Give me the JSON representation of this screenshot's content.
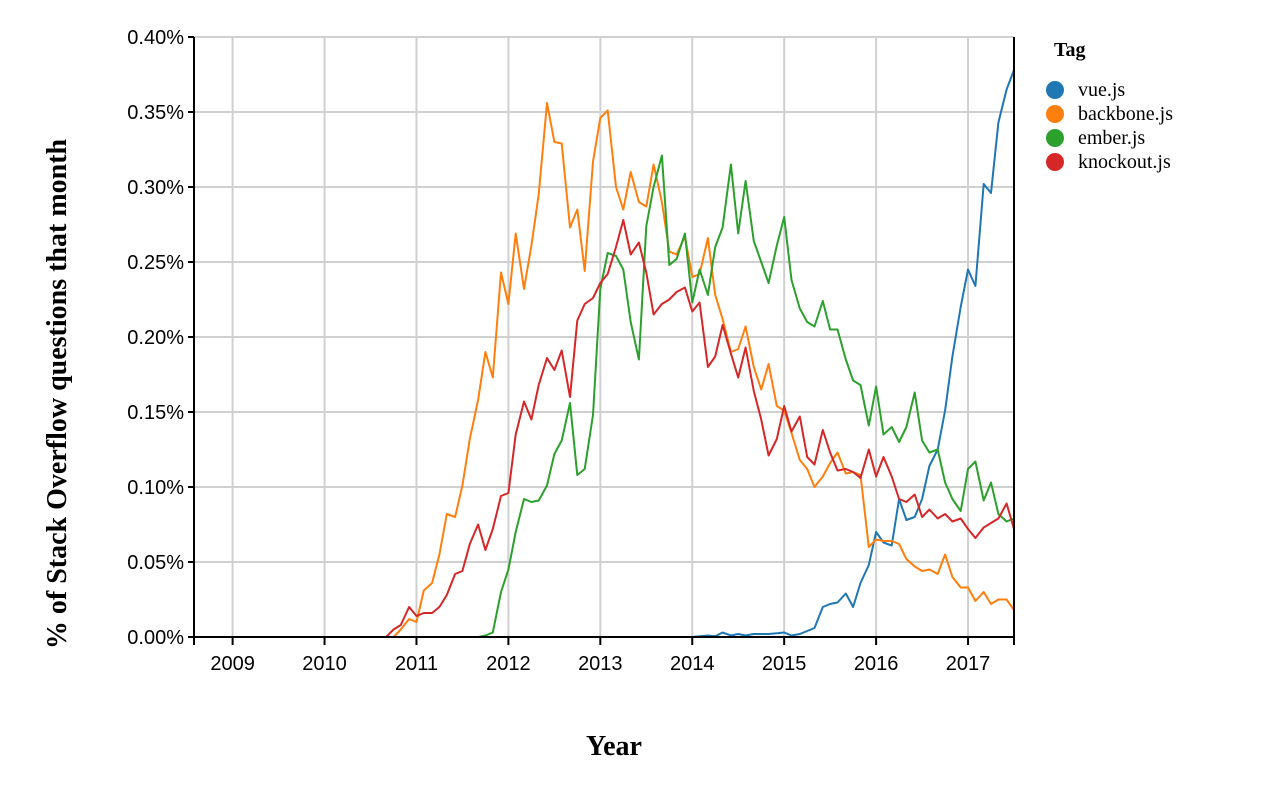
{
  "chart_data": {
    "type": "line",
    "title": "",
    "xlabel": "Year",
    "ylabel": "% of Stack Overflow questions that month",
    "xlim": [
      2008.58,
      2017.5
    ],
    "ylim": [
      0,
      0.4
    ],
    "x_ticks": [
      {
        "value": 2009,
        "label": "2009"
      },
      {
        "value": 2010,
        "label": "2010"
      },
      {
        "value": 2011,
        "label": "2011"
      },
      {
        "value": 2012,
        "label": "2012"
      },
      {
        "value": 2013,
        "label": "2013"
      },
      {
        "value": 2014,
        "label": "2014"
      },
      {
        "value": 2015,
        "label": "2015"
      },
      {
        "value": 2016,
        "label": "2016"
      },
      {
        "value": 2017,
        "label": "2017"
      }
    ],
    "y_ticks": [
      {
        "value": 0.0,
        "label": "0.00%"
      },
      {
        "value": 0.05,
        "label": "0.05%"
      },
      {
        "value": 0.1,
        "label": "0.10%"
      },
      {
        "value": 0.15,
        "label": "0.15%"
      },
      {
        "value": 0.2,
        "label": "0.20%"
      },
      {
        "value": 0.25,
        "label": "0.25%"
      },
      {
        "value": 0.3,
        "label": "0.30%"
      },
      {
        "value": 0.35,
        "label": "0.35%"
      },
      {
        "value": 0.4,
        "label": "0.40%"
      }
    ],
    "grid": true,
    "legend": {
      "title": "Tag",
      "position": "right"
    },
    "series": [
      {
        "name": "vue.js",
        "color": "#1f77b4",
        "points": [
          [
            2008.58,
            0.0
          ],
          [
            2014.0,
            0.0
          ],
          [
            2014.17,
            0.001
          ],
          [
            2014.25,
            0.0005
          ],
          [
            2014.33,
            0.003
          ],
          [
            2014.42,
            0.001
          ],
          [
            2014.5,
            0.002
          ],
          [
            2014.58,
            0.001
          ],
          [
            2014.67,
            0.002
          ],
          [
            2014.75,
            0.002
          ],
          [
            2014.83,
            0.002
          ],
          [
            2014.92,
            0.0025
          ],
          [
            2015.0,
            0.003
          ],
          [
            2015.08,
            0.001
          ],
          [
            2015.17,
            0.002
          ],
          [
            2015.25,
            0.004
          ],
          [
            2015.33,
            0.006
          ],
          [
            2015.42,
            0.02
          ],
          [
            2015.5,
            0.022
          ],
          [
            2015.58,
            0.023
          ],
          [
            2015.67,
            0.029
          ],
          [
            2015.75,
            0.02
          ],
          [
            2015.83,
            0.036
          ],
          [
            2015.92,
            0.048
          ],
          [
            2016.0,
            0.07
          ],
          [
            2016.08,
            0.063
          ],
          [
            2016.17,
            0.061
          ],
          [
            2016.25,
            0.092
          ],
          [
            2016.33,
            0.078
          ],
          [
            2016.42,
            0.08
          ],
          [
            2016.5,
            0.092
          ],
          [
            2016.58,
            0.114
          ],
          [
            2016.67,
            0.125
          ],
          [
            2016.75,
            0.151
          ],
          [
            2016.83,
            0.187
          ],
          [
            2016.92,
            0.22
          ],
          [
            2017.0,
            0.245
          ],
          [
            2017.08,
            0.234
          ],
          [
            2017.17,
            0.302
          ],
          [
            2017.25,
            0.296
          ],
          [
            2017.33,
            0.343
          ],
          [
            2017.42,
            0.365
          ],
          [
            2017.5,
            0.378
          ]
        ]
      },
      {
        "name": "backbone.js",
        "color": "#ff7f0e",
        "points": [
          [
            2008.58,
            0.0
          ],
          [
            2010.75,
            0.0
          ],
          [
            2010.83,
            0.005
          ],
          [
            2010.92,
            0.012
          ],
          [
            2011.0,
            0.01
          ],
          [
            2011.08,
            0.031
          ],
          [
            2011.17,
            0.036
          ],
          [
            2011.25,
            0.055
          ],
          [
            2011.33,
            0.082
          ],
          [
            2011.42,
            0.08
          ],
          [
            2011.5,
            0.101
          ],
          [
            2011.58,
            0.132
          ],
          [
            2011.67,
            0.158
          ],
          [
            2011.75,
            0.19
          ],
          [
            2011.83,
            0.173
          ],
          [
            2011.92,
            0.243
          ],
          [
            2012.0,
            0.222
          ],
          [
            2012.08,
            0.269
          ],
          [
            2012.17,
            0.232
          ],
          [
            2012.25,
            0.261
          ],
          [
            2012.33,
            0.295
          ],
          [
            2012.42,
            0.356
          ],
          [
            2012.5,
            0.33
          ],
          [
            2012.58,
            0.329
          ],
          [
            2012.67,
            0.273
          ],
          [
            2012.75,
            0.285
          ],
          [
            2012.83,
            0.244
          ],
          [
            2012.92,
            0.317
          ],
          [
            2013.0,
            0.346
          ],
          [
            2013.08,
            0.351
          ],
          [
            2013.17,
            0.3
          ],
          [
            2013.25,
            0.285
          ],
          [
            2013.33,
            0.31
          ],
          [
            2013.42,
            0.29
          ],
          [
            2013.5,
            0.287
          ],
          [
            2013.58,
            0.315
          ],
          [
            2013.67,
            0.29
          ],
          [
            2013.75,
            0.257
          ],
          [
            2013.83,
            0.255
          ],
          [
            2013.92,
            0.267
          ],
          [
            2014.0,
            0.24
          ],
          [
            2014.08,
            0.242
          ],
          [
            2014.17,
            0.266
          ],
          [
            2014.25,
            0.228
          ],
          [
            2014.33,
            0.212
          ],
          [
            2014.42,
            0.19
          ],
          [
            2014.5,
            0.192
          ],
          [
            2014.58,
            0.207
          ],
          [
            2014.67,
            0.18
          ],
          [
            2014.75,
            0.165
          ],
          [
            2014.83,
            0.182
          ],
          [
            2014.92,
            0.154
          ],
          [
            2015.0,
            0.151
          ],
          [
            2015.08,
            0.136
          ],
          [
            2015.17,
            0.118
          ],
          [
            2015.25,
            0.112
          ],
          [
            2015.33,
            0.1
          ],
          [
            2015.42,
            0.107
          ],
          [
            2015.5,
            0.116
          ],
          [
            2015.58,
            0.123
          ],
          [
            2015.67,
            0.109
          ],
          [
            2015.75,
            0.11
          ],
          [
            2015.83,
            0.108
          ],
          [
            2015.92,
            0.06
          ],
          [
            2016.0,
            0.065
          ],
          [
            2016.08,
            0.064
          ],
          [
            2016.17,
            0.064
          ],
          [
            2016.25,
            0.062
          ],
          [
            2016.33,
            0.052
          ],
          [
            2016.42,
            0.047
          ],
          [
            2016.5,
            0.044
          ],
          [
            2016.58,
            0.045
          ],
          [
            2016.67,
            0.042
          ],
          [
            2016.75,
            0.055
          ],
          [
            2016.83,
            0.04
          ],
          [
            2016.92,
            0.033
          ],
          [
            2017.0,
            0.033
          ],
          [
            2017.08,
            0.024
          ],
          [
            2017.17,
            0.03
          ],
          [
            2017.25,
            0.022
          ],
          [
            2017.33,
            0.025
          ],
          [
            2017.42,
            0.025
          ],
          [
            2017.5,
            0.018
          ]
        ]
      },
      {
        "name": "ember.js",
        "color": "#2ca02c",
        "points": [
          [
            2008.58,
            0.0
          ],
          [
            2011.67,
            0.0
          ],
          [
            2011.75,
            0.001
          ],
          [
            2011.83,
            0.003
          ],
          [
            2011.92,
            0.03
          ],
          [
            2012.0,
            0.045
          ],
          [
            2012.08,
            0.07
          ],
          [
            2012.17,
            0.092
          ],
          [
            2012.25,
            0.09
          ],
          [
            2012.33,
            0.091
          ],
          [
            2012.42,
            0.101
          ],
          [
            2012.5,
            0.122
          ],
          [
            2012.58,
            0.131
          ],
          [
            2012.67,
            0.156
          ],
          [
            2012.75,
            0.108
          ],
          [
            2012.83,
            0.112
          ],
          [
            2012.92,
            0.148
          ],
          [
            2013.0,
            0.232
          ],
          [
            2013.08,
            0.256
          ],
          [
            2013.17,
            0.254
          ],
          [
            2013.25,
            0.245
          ],
          [
            2013.33,
            0.21
          ],
          [
            2013.42,
            0.185
          ],
          [
            2013.5,
            0.274
          ],
          [
            2013.58,
            0.3
          ],
          [
            2013.67,
            0.321
          ],
          [
            2013.75,
            0.248
          ],
          [
            2013.83,
            0.252
          ],
          [
            2013.92,
            0.269
          ],
          [
            2014.0,
            0.223
          ],
          [
            2014.08,
            0.245
          ],
          [
            2014.17,
            0.228
          ],
          [
            2014.25,
            0.26
          ],
          [
            2014.33,
            0.273
          ],
          [
            2014.42,
            0.315
          ],
          [
            2014.5,
            0.269
          ],
          [
            2014.58,
            0.304
          ],
          [
            2014.67,
            0.264
          ],
          [
            2014.75,
            0.25
          ],
          [
            2014.83,
            0.236
          ],
          [
            2014.92,
            0.261
          ],
          [
            2015.0,
            0.28
          ],
          [
            2015.08,
            0.238
          ],
          [
            2015.17,
            0.219
          ],
          [
            2015.25,
            0.21
          ],
          [
            2015.33,
            0.207
          ],
          [
            2015.42,
            0.224
          ],
          [
            2015.5,
            0.205
          ],
          [
            2015.58,
            0.205
          ],
          [
            2015.67,
            0.185
          ],
          [
            2015.75,
            0.171
          ],
          [
            2015.83,
            0.168
          ],
          [
            2015.92,
            0.141
          ],
          [
            2016.0,
            0.167
          ],
          [
            2016.08,
            0.135
          ],
          [
            2016.17,
            0.14
          ],
          [
            2016.25,
            0.13
          ],
          [
            2016.33,
            0.14
          ],
          [
            2016.42,
            0.163
          ],
          [
            2016.5,
            0.131
          ],
          [
            2016.58,
            0.123
          ],
          [
            2016.67,
            0.125
          ],
          [
            2016.75,
            0.103
          ],
          [
            2016.83,
            0.092
          ],
          [
            2016.92,
            0.084
          ],
          [
            2017.0,
            0.112
          ],
          [
            2017.08,
            0.117
          ],
          [
            2017.17,
            0.091
          ],
          [
            2017.25,
            0.103
          ],
          [
            2017.33,
            0.082
          ],
          [
            2017.42,
            0.077
          ],
          [
            2017.5,
            0.079
          ]
        ]
      },
      {
        "name": "knockout.js",
        "color": "#d62728",
        "points": [
          [
            2008.58,
            0.0
          ],
          [
            2010.67,
            0.0
          ],
          [
            2010.75,
            0.005
          ],
          [
            2010.83,
            0.008
          ],
          [
            2010.92,
            0.02
          ],
          [
            2011.0,
            0.014
          ],
          [
            2011.08,
            0.016
          ],
          [
            2011.17,
            0.016
          ],
          [
            2011.25,
            0.02
          ],
          [
            2011.33,
            0.028
          ],
          [
            2011.42,
            0.042
          ],
          [
            2011.5,
            0.044
          ],
          [
            2011.58,
            0.062
          ],
          [
            2011.67,
            0.075
          ],
          [
            2011.75,
            0.058
          ],
          [
            2011.83,
            0.072
          ],
          [
            2011.92,
            0.094
          ],
          [
            2012.0,
            0.096
          ],
          [
            2012.08,
            0.135
          ],
          [
            2012.17,
            0.157
          ],
          [
            2012.25,
            0.145
          ],
          [
            2012.33,
            0.168
          ],
          [
            2012.42,
            0.186
          ],
          [
            2012.5,
            0.178
          ],
          [
            2012.58,
            0.191
          ],
          [
            2012.67,
            0.16
          ],
          [
            2012.75,
            0.211
          ],
          [
            2012.83,
            0.222
          ],
          [
            2012.92,
            0.226
          ],
          [
            2013.0,
            0.236
          ],
          [
            2013.08,
            0.242
          ],
          [
            2013.17,
            0.26
          ],
          [
            2013.25,
            0.278
          ],
          [
            2013.33,
            0.255
          ],
          [
            2013.42,
            0.263
          ],
          [
            2013.5,
            0.243
          ],
          [
            2013.58,
            0.215
          ],
          [
            2013.67,
            0.222
          ],
          [
            2013.75,
            0.225
          ],
          [
            2013.83,
            0.23
          ],
          [
            2013.92,
            0.233
          ],
          [
            2014.0,
            0.217
          ],
          [
            2014.08,
            0.223
          ],
          [
            2014.17,
            0.18
          ],
          [
            2014.25,
            0.187
          ],
          [
            2014.33,
            0.208
          ],
          [
            2014.42,
            0.189
          ],
          [
            2014.5,
            0.173
          ],
          [
            2014.58,
            0.193
          ],
          [
            2014.67,
            0.164
          ],
          [
            2014.75,
            0.145
          ],
          [
            2014.83,
            0.121
          ],
          [
            2014.92,
            0.132
          ],
          [
            2015.0,
            0.154
          ],
          [
            2015.08,
            0.137
          ],
          [
            2015.17,
            0.147
          ],
          [
            2015.25,
            0.12
          ],
          [
            2015.33,
            0.115
          ],
          [
            2015.42,
            0.138
          ],
          [
            2015.5,
            0.123
          ],
          [
            2015.58,
            0.111
          ],
          [
            2015.67,
            0.112
          ],
          [
            2015.75,
            0.11
          ],
          [
            2015.83,
            0.106
          ],
          [
            2015.92,
            0.125
          ],
          [
            2016.0,
            0.107
          ],
          [
            2016.08,
            0.12
          ],
          [
            2016.17,
            0.107
          ],
          [
            2016.25,
            0.092
          ],
          [
            2016.33,
            0.09
          ],
          [
            2016.42,
            0.095
          ],
          [
            2016.5,
            0.08
          ],
          [
            2016.58,
            0.085
          ],
          [
            2016.67,
            0.079
          ],
          [
            2016.75,
            0.082
          ],
          [
            2016.83,
            0.077
          ],
          [
            2016.92,
            0.079
          ],
          [
            2017.0,
            0.072
          ],
          [
            2017.08,
            0.066
          ],
          [
            2017.17,
            0.073
          ],
          [
            2017.25,
            0.076
          ],
          [
            2017.33,
            0.079
          ],
          [
            2017.42,
            0.089
          ],
          [
            2017.5,
            0.072
          ]
        ]
      }
    ]
  }
}
